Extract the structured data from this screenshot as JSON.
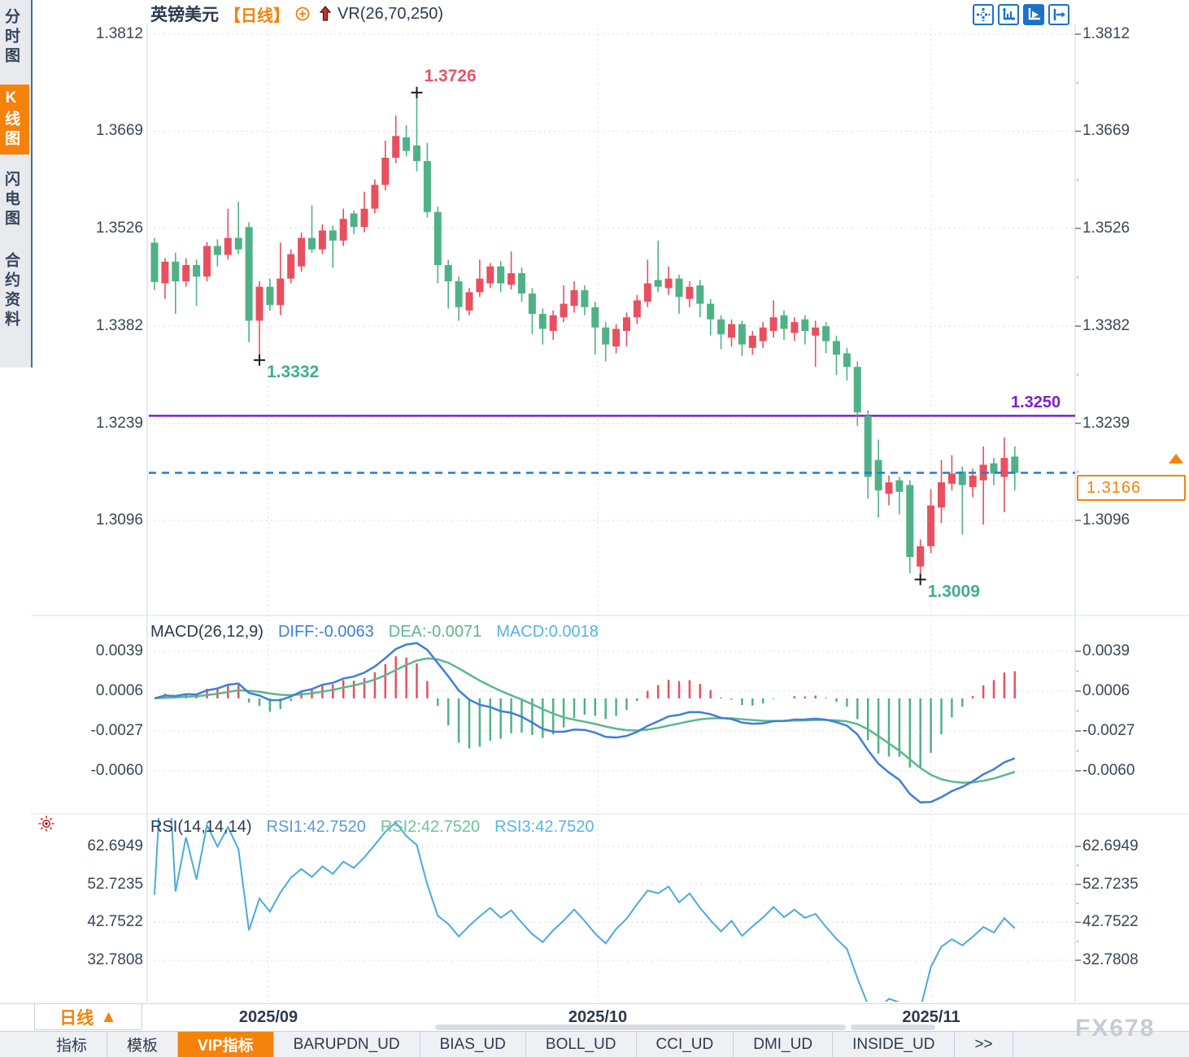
{
  "header": {
    "symbol": "英镑美元",
    "period": "【日线】",
    "indicator": "VR(26,70,250)"
  },
  "sidebar": {
    "items": [
      {
        "label": "分时图",
        "active": false
      },
      {
        "label": "K线图",
        "active": true
      },
      {
        "label": "闪电图",
        "active": false
      },
      {
        "label": "合约资料",
        "active": false
      }
    ]
  },
  "toolbar": {
    "icons": [
      "crosshair-move-icon",
      "axis-scale-icon",
      "axis-play-icon",
      "collapse-panel-icon"
    ]
  },
  "price_box": {
    "value": "1.3166"
  },
  "period_button": {
    "label": "日线",
    "arrow": "▲"
  },
  "bottom_tabs": {
    "items": [
      {
        "label": "指标",
        "active": false
      },
      {
        "label": "模板",
        "active": false
      },
      {
        "label": "VIP指标",
        "active": true
      },
      {
        "label": "BARUPDN_UD",
        "active": false
      },
      {
        "label": "BIAS_UD",
        "active": false
      },
      {
        "label": "BOLL_UD",
        "active": false
      },
      {
        "label": "CCI_UD",
        "active": false
      },
      {
        "label": "DMI_UD",
        "active": false
      },
      {
        "label": "INSIDE_UD",
        "active": false
      },
      {
        "label": ">>",
        "active": false
      }
    ]
  },
  "watermark": "FX678",
  "chart_data": {
    "type": "candlestick",
    "symbol": "英镑美元",
    "timeframe": "日线",
    "x_labels": [
      "2025/09",
      "2025/10",
      "2025/11"
    ],
    "colors": {
      "up": "#e8505f",
      "down": "#4fb286",
      "diff_line": "#3f7fd9",
      "dea_line": "#5cb88a",
      "rsi_line": "#4aabdc",
      "purple": "#7a1fd6",
      "dashed_blue": "#1a7ce0",
      "accent_orange": "#f5820a",
      "grid": "#d8dbe2",
      "axis_text": "#3a4656"
    },
    "price_pane": {
      "y_ticks": [
        1.3812,
        1.3669,
        1.3526,
        1.3382,
        1.3239,
        1.3096
      ],
      "hline_purple": 1.325,
      "hline_purple_label": "1.3250",
      "current_price": 1.3166,
      "annotations": [
        {
          "text": "1.3726",
          "candle": 25,
          "side": "high",
          "color": "#e8556a"
        },
        {
          "text": "1.3332",
          "candle": 10,
          "side": "low",
          "color": "#3fae8c"
        },
        {
          "text": "1.3009",
          "candle": 73,
          "side": "low",
          "color": "#3fae8c"
        }
      ],
      "candles_ohlc": [
        [
          1.3505,
          1.3512,
          1.3435,
          1.3447
        ],
        [
          1.3445,
          1.3482,
          1.3422,
          1.3477
        ],
        [
          1.3477,
          1.349,
          1.34,
          1.3448
        ],
        [
          1.3448,
          1.3482,
          1.344,
          1.3472
        ],
        [
          1.3472,
          1.348,
          1.3412,
          1.3455
        ],
        [
          1.3455,
          1.3506,
          1.3448,
          1.35
        ],
        [
          1.35,
          1.351,
          1.347,
          1.3487
        ],
        [
          1.3487,
          1.3555,
          1.348,
          1.3512
        ],
        [
          1.3512,
          1.3565,
          1.3488,
          1.3495
        ],
        [
          1.3528,
          1.3535,
          1.3358,
          1.339
        ],
        [
          1.339,
          1.3448,
          1.3332,
          1.344
        ],
        [
          1.344,
          1.3452,
          1.3405,
          1.3413
        ],
        [
          1.3413,
          1.3505,
          1.3398,
          1.3452
        ],
        [
          1.3452,
          1.3495,
          1.3445,
          1.3488
        ],
        [
          1.347,
          1.352,
          1.3462,
          1.3512
        ],
        [
          1.3512,
          1.356,
          1.349,
          1.3495
        ],
        [
          1.3495,
          1.3532,
          1.3488,
          1.3523
        ],
        [
          1.3523,
          1.353,
          1.3468,
          1.3508
        ],
        [
          1.3508,
          1.3555,
          1.35,
          1.354
        ],
        [
          1.3548,
          1.3552,
          1.3518,
          1.3528
        ],
        [
          1.3528,
          1.358,
          1.352,
          1.3555
        ],
        [
          1.3555,
          1.3598,
          1.3548,
          1.359
        ],
        [
          1.359,
          1.3655,
          1.3582,
          1.363
        ],
        [
          1.363,
          1.3692,
          1.3622,
          1.3662
        ],
        [
          1.366,
          1.3678,
          1.3632,
          1.364
        ],
        [
          1.3648,
          1.3726,
          1.361,
          1.3625
        ],
        [
          1.3625,
          1.3652,
          1.3542,
          1.355
        ],
        [
          1.355,
          1.3558,
          1.3445,
          1.3472
        ],
        [
          1.3472,
          1.348,
          1.3408,
          1.3448
        ],
        [
          1.3448,
          1.3455,
          1.339,
          1.341
        ],
        [
          1.3405,
          1.3438,
          1.3398,
          1.3432
        ],
        [
          1.3432,
          1.348,
          1.3425,
          1.3452
        ],
        [
          1.3445,
          1.3475,
          1.3438,
          1.347
        ],
        [
          1.347,
          1.3478,
          1.3432,
          1.3445
        ],
        [
          1.3443,
          1.3492,
          1.3436,
          1.346
        ],
        [
          1.346,
          1.3468,
          1.3418,
          1.343
        ],
        [
          1.343,
          1.3438,
          1.337,
          1.34
        ],
        [
          1.34,
          1.3408,
          1.3355,
          1.3378
        ],
        [
          1.3375,
          1.3405,
          1.3362,
          1.3398
        ],
        [
          1.3395,
          1.3442,
          1.3388,
          1.3415
        ],
        [
          1.3412,
          1.3448,
          1.3402,
          1.3435
        ],
        [
          1.3435,
          1.3442,
          1.3398,
          1.341
        ],
        [
          1.341,
          1.3418,
          1.334,
          1.338
        ],
        [
          1.338,
          1.3388,
          1.333,
          1.3355
        ],
        [
          1.3352,
          1.3385,
          1.3342,
          1.3378
        ],
        [
          1.3375,
          1.3402,
          1.3352,
          1.3395
        ],
        [
          1.3395,
          1.3428,
          1.3385,
          1.342
        ],
        [
          1.3418,
          1.348,
          1.341,
          1.3445
        ],
        [
          1.345,
          1.3508,
          1.3432,
          1.344
        ],
        [
          1.3438,
          1.347,
          1.3428,
          1.3452
        ],
        [
          1.3452,
          1.3458,
          1.34,
          1.3425
        ],
        [
          1.3422,
          1.3448,
          1.341,
          1.344
        ],
        [
          1.3442,
          1.345,
          1.3395,
          1.3415
        ],
        [
          1.3415,
          1.3422,
          1.3368,
          1.3392
        ],
        [
          1.3392,
          1.3398,
          1.3348,
          1.337
        ],
        [
          1.3365,
          1.3392,
          1.3352,
          1.3385
        ],
        [
          1.3385,
          1.339,
          1.3338,
          1.3355
        ],
        [
          1.335,
          1.3375,
          1.334,
          1.3368
        ],
        [
          1.336,
          1.3388,
          1.335,
          1.338
        ],
        [
          1.3375,
          1.342,
          1.3365,
          1.3395
        ],
        [
          1.3398,
          1.3405,
          1.3362,
          1.3378
        ],
        [
          1.3372,
          1.3395,
          1.336,
          1.3388
        ],
        [
          1.3392,
          1.3398,
          1.3355,
          1.3375
        ],
        [
          1.3368,
          1.339,
          1.3322,
          1.338
        ],
        [
          1.3382,
          1.3388,
          1.3342,
          1.336
        ],
        [
          1.336,
          1.3368,
          1.331,
          1.334
        ],
        [
          1.3342,
          1.335,
          1.3302,
          1.3322
        ],
        [
          1.3322,
          1.333,
          1.3235,
          1.3255
        ],
        [
          1.325,
          1.3258,
          1.3128,
          1.316
        ],
        [
          1.3185,
          1.3215,
          1.31,
          1.314
        ],
        [
          1.3135,
          1.3162,
          1.3118,
          1.3152
        ],
        [
          1.3155,
          1.316,
          1.3105,
          1.3138
        ],
        [
          1.3148,
          1.3155,
          1.3018,
          1.3042
        ],
        [
          1.3028,
          1.3068,
          1.3009,
          1.3058
        ],
        [
          1.3058,
          1.3142,
          1.3048,
          1.3118
        ],
        [
          1.3115,
          1.3185,
          1.3092,
          1.3152
        ],
        [
          1.315,
          1.3192,
          1.314,
          1.3165
        ],
        [
          1.3168,
          1.3175,
          1.3075,
          1.3148
        ],
        [
          1.3145,
          1.3172,
          1.313,
          1.3162
        ],
        [
          1.3155,
          1.3205,
          1.309,
          1.3178
        ],
        [
          1.318,
          1.3188,
          1.3148,
          1.3165
        ],
        [
          1.316,
          1.3218,
          1.3108,
          1.3188
        ],
        [
          1.319,
          1.3205,
          1.314,
          1.3166
        ]
      ]
    },
    "macd_pane": {
      "title": "MACD(26,12,9)",
      "params": {
        "slow": 26,
        "fast": 12,
        "signal": 9
      },
      "readouts": [
        {
          "label": "DIFF:-0.0063",
          "color": "#3f7fd9"
        },
        {
          "label": "DEA:-0.0071",
          "color": "#5cb88a"
        },
        {
          "label": "MACD:0.0018",
          "color": "#53b4e0"
        }
      ],
      "y_ticks": [
        0.0039,
        0.0006,
        -0.0027,
        -0.006
      ]
    },
    "rsi_pane": {
      "title": "RSI(14,14,14)",
      "period": 14,
      "readouts": [
        {
          "label": "RSI1:42.7520",
          "color": "#5b9bd5"
        },
        {
          "label": "RSI2:42.7520",
          "color": "#6cc49a"
        },
        {
          "label": "RSI3:42.7520",
          "color": "#56b6e8"
        }
      ],
      "y_ticks": [
        62.6949,
        52.7235,
        42.7522,
        32.7808
      ]
    }
  }
}
